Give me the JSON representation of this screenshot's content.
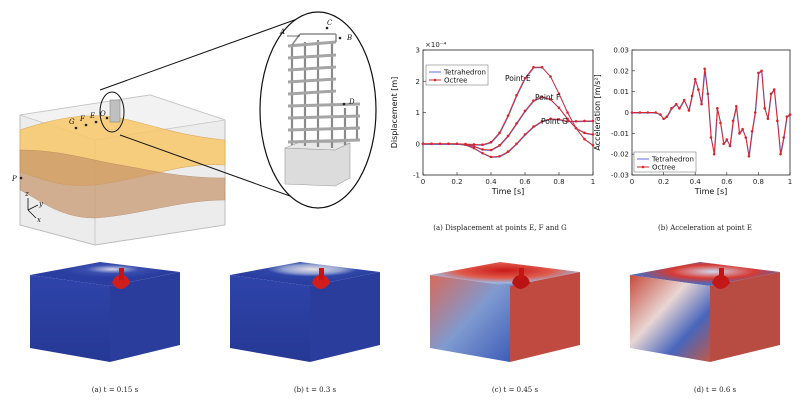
{
  "scene": {
    "point_labels": [
      "A",
      "B",
      "C",
      "D",
      "G",
      "F",
      "E",
      "O",
      "P"
    ],
    "axis_labels": [
      "z",
      "y",
      "x"
    ]
  },
  "captions": {
    "disp": "(a) Displacement at points E, F and G",
    "acc": "(b) Acceleration at point E",
    "snap_a": "(a) t = 0.15 s",
    "snap_b": "(b) t = 0.3 s",
    "snap_c": "(c) t = 0.45 s",
    "snap_d": "(d) t = 0.6 s"
  },
  "chart_data": [
    {
      "type": "line",
      "xlabel": "Time [s]",
      "ylabel": "Displacement [m]",
      "exponent_label": "×10⁻⁴",
      "xlim": [
        0,
        1
      ],
      "ylim": [
        -1,
        3
      ],
      "xticks": [
        "0",
        "0.2",
        "0.4",
        "0.6",
        "0.8",
        "1"
      ],
      "yticks": [
        "-1",
        "0",
        "1",
        "2",
        "3"
      ],
      "legend": [
        "Tetrahedron",
        "Octree"
      ],
      "legend_position": "top-left",
      "series_colors": [
        "#5b6bd8",
        "#d8262c"
      ],
      "annotations": [
        "Point E",
        "Point F",
        "Point G"
      ],
      "x": [
        0,
        0.05,
        0.1,
        0.15,
        0.2,
        0.25,
        0.3,
        0.35,
        0.4,
        0.45,
        0.5,
        0.55,
        0.6,
        0.65,
        0.7,
        0.75,
        0.8,
        0.85,
        0.9,
        0.95,
        1.0
      ],
      "series": [
        {
          "name": "Point E",
          "values": [
            0,
            0,
            0,
            0,
            0,
            -0.01,
            -0.02,
            -0.03,
            0.05,
            0.35,
            0.9,
            1.55,
            2.1,
            2.45,
            2.45,
            2.15,
            1.6,
            1.0,
            0.5,
            0.15,
            -0.05
          ]
        },
        {
          "name": "Point F",
          "values": [
            0,
            0,
            0,
            0,
            0,
            -0.02,
            -0.08,
            -0.18,
            -0.2,
            -0.05,
            0.25,
            0.65,
            1.05,
            1.38,
            1.5,
            1.42,
            1.15,
            0.8,
            0.5,
            0.35,
            0.3
          ]
        },
        {
          "name": "Point G",
          "values": [
            0,
            0,
            0,
            0,
            0,
            -0.03,
            -0.14,
            -0.3,
            -0.42,
            -0.4,
            -0.25,
            0.0,
            0.3,
            0.55,
            0.72,
            0.8,
            0.78,
            0.72,
            0.72,
            0.73,
            0.73
          ]
        }
      ]
    },
    {
      "type": "line",
      "xlabel": "Time [s]",
      "ylabel": "Acceleration [m/s²]",
      "xlim": [
        0,
        1
      ],
      "ylim": [
        -0.03,
        0.03
      ],
      "xticks": [
        "0",
        "0.2",
        "0.4",
        "0.6",
        "0.8",
        "1"
      ],
      "yticks": [
        "-0.03",
        "-0.02",
        "-0.01",
        "0",
        "0.01",
        "0.02",
        "0.03"
      ],
      "legend": [
        "Tetrahedron",
        "Octree"
      ],
      "legend_position": "bottom-left",
      "series_colors": [
        "#5b6bd8",
        "#d8262c"
      ],
      "x": [
        0,
        0.05,
        0.1,
        0.15,
        0.18,
        0.2,
        0.22,
        0.25,
        0.28,
        0.3,
        0.33,
        0.36,
        0.38,
        0.4,
        0.42,
        0.44,
        0.46,
        0.48,
        0.5,
        0.52,
        0.54,
        0.56,
        0.58,
        0.6,
        0.62,
        0.64,
        0.66,
        0.68,
        0.7,
        0.72,
        0.74,
        0.76,
        0.78,
        0.8,
        0.82,
        0.84,
        0.86,
        0.88,
        0.9,
        0.92,
        0.94,
        0.96,
        0.98,
        1.0
      ],
      "series": [
        {
          "name": "Octree",
          "values": [
            0,
            0,
            0,
            0,
            -0.001,
            -0.003,
            -0.002,
            0.002,
            0.004,
            0.002,
            0.006,
            0.001,
            0.008,
            0.016,
            0.011,
            0.004,
            0.021,
            0.009,
            -0.012,
            -0.02,
            0.002,
            -0.005,
            -0.015,
            -0.013,
            -0.016,
            -0.004,
            0.003,
            -0.01,
            -0.008,
            -0.012,
            -0.021,
            -0.009,
            0.0,
            0.019,
            0.02,
            0.002,
            -0.003,
            0.009,
            0.011,
            -0.004,
            -0.02,
            -0.012,
            -0.002,
            -0.001
          ]
        }
      ]
    }
  ]
}
